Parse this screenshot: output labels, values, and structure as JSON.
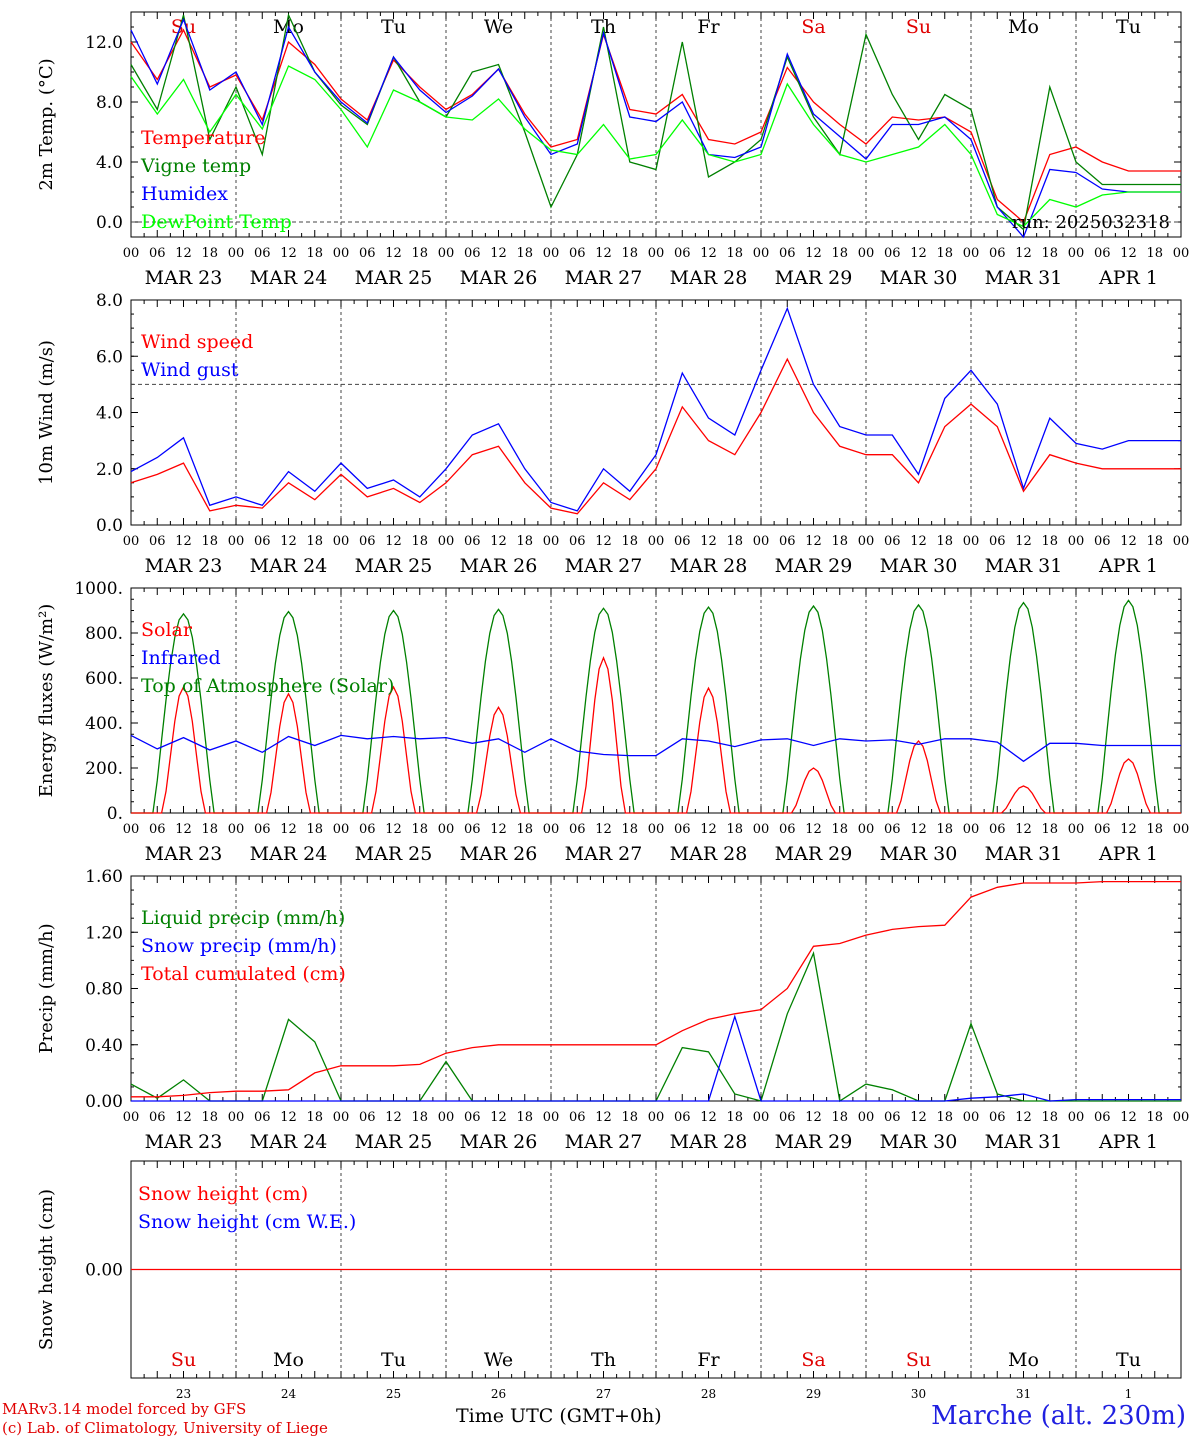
{
  "footer": {
    "model_credit": "MARv3.14 model forced by GFS",
    "lab_credit": "(c) Lab. of Climatology, University of Liege",
    "time_label": "Time UTC (GMT+0h)",
    "station": "Marche (alt. 230m)"
  },
  "x_axis": {
    "hour_ticks": [
      "00",
      "06",
      "12",
      "18"
    ],
    "date_labels": [
      "MAR 23",
      "MAR 24",
      "MAR 25",
      "MAR 26",
      "MAR 27",
      "MAR 28",
      "MAR 29",
      "MAR 30",
      "MAR 31",
      "APR  1"
    ],
    "weekdays": [
      "Su",
      "Mo",
      "Tu",
      "We",
      "Th",
      "Fr",
      "Sa",
      "Su",
      "Mo",
      "Tu"
    ],
    "weekday_colors": [
      "#e00000",
      "#000000",
      "#000000",
      "#000000",
      "#000000",
      "#000000",
      "#e00000",
      "#e00000",
      "#000000",
      "#000000"
    ],
    "day_numbers": [
      "23",
      "24",
      "25",
      "26",
      "27",
      "28",
      "29",
      "30",
      "31",
      "1"
    ],
    "range_hours": [
      0,
      240
    ]
  },
  "chart_data": [
    {
      "type": "line",
      "ylabel": "2m Temp. (°C)",
      "ylim": [
        -1.0,
        14.0
      ],
      "yticks": [
        "0.0",
        "4.0",
        "8.0",
        "12.0"
      ],
      "ytick_values": [
        0,
        4,
        8,
        12
      ],
      "reference_line": 0,
      "annotation": "run: 2025032318",
      "x_hours": [
        0,
        6,
        12,
        18,
        24,
        30,
        36,
        42,
        48,
        54,
        60,
        66,
        72,
        78,
        84,
        90,
        96,
        102,
        108,
        114,
        120,
        126,
        132,
        138,
        144,
        150,
        156,
        162,
        168,
        174,
        180,
        186,
        192,
        198,
        204,
        210,
        216,
        222,
        228,
        234,
        240
      ],
      "series": [
        {
          "name": "Temperature",
          "color": "#ff0000",
          "values": [
            12.0,
            9.5,
            12.8,
            9.0,
            9.8,
            6.8,
            12.0,
            10.5,
            8.2,
            6.8,
            10.8,
            9.0,
            7.5,
            8.5,
            10.2,
            7.2,
            5.0,
            5.5,
            12.5,
            7.5,
            7.2,
            8.5,
            5.5,
            5.2,
            6.0,
            10.3,
            8.0,
            6.5,
            5.2,
            7.0,
            6.8,
            7.0,
            6.0,
            1.5,
            0.0,
            4.5,
            5.0,
            4.0,
            3.4,
            3.4,
            3.4
          ]
        },
        {
          "name": "Vigne temp",
          "color": "#008000",
          "values": [
            10.5,
            7.5,
            13.8,
            5.5,
            9.0,
            4.5,
            13.8,
            10.0,
            7.8,
            6.5,
            11.0,
            8.0,
            7.0,
            10.0,
            10.5,
            6.0,
            1.0,
            4.5,
            13.0,
            4.0,
            3.5,
            12.0,
            3.0,
            4.0,
            5.5,
            11.0,
            7.0,
            4.5,
            12.5,
            8.5,
            5.5,
            8.5,
            7.5,
            1.0,
            -0.5,
            9.0,
            4.0,
            2.5,
            2.5,
            2.5,
            2.5
          ]
        },
        {
          "name": "Humidex",
          "color": "#0000ff",
          "values": [
            12.8,
            9.2,
            13.5,
            8.8,
            10.0,
            6.5,
            13.0,
            10.0,
            8.0,
            6.6,
            11.0,
            8.8,
            7.3,
            8.4,
            10.2,
            7.0,
            4.5,
            5.2,
            12.6,
            7.0,
            6.7,
            8.0,
            4.5,
            4.3,
            5.0,
            11.2,
            7.2,
            5.7,
            4.2,
            6.5,
            6.5,
            7.0,
            5.5,
            1.0,
            -1.8,
            3.5,
            3.3,
            2.2,
            2.0,
            2.0,
            2.0
          ]
        },
        {
          "name": "DewPoint Temp",
          "color": "#00ff00",
          "values": [
            9.7,
            7.2,
            9.5,
            6.0,
            8.5,
            6.2,
            10.4,
            9.5,
            7.5,
            5.0,
            8.8,
            8.0,
            7.0,
            6.8,
            8.2,
            6.2,
            4.8,
            4.5,
            6.5,
            4.2,
            4.5,
            6.8,
            4.5,
            4.0,
            4.5,
            9.2,
            6.5,
            4.5,
            4.0,
            4.5,
            5.0,
            6.5,
            4.5,
            0.5,
            -0.3,
            1.5,
            1.0,
            1.8,
            2.0,
            2.0,
            2.0
          ]
        }
      ]
    },
    {
      "type": "line",
      "ylabel": "10m Wind (m/s)",
      "ylim": [
        0.0,
        8.0
      ],
      "yticks": [
        "0.0",
        "2.0",
        "4.0",
        "6.0",
        "8.0"
      ],
      "ytick_values": [
        0,
        2,
        4,
        6,
        8
      ],
      "reference_line": 5,
      "x_hours": [
        0,
        6,
        12,
        18,
        24,
        30,
        36,
        42,
        48,
        54,
        60,
        66,
        72,
        78,
        84,
        90,
        96,
        102,
        108,
        114,
        120,
        126,
        132,
        138,
        144,
        150,
        156,
        162,
        168,
        174,
        180,
        186,
        192,
        198,
        204,
        210,
        216,
        222,
        228,
        234,
        240
      ],
      "series": [
        {
          "name": "Wind speed",
          "color": "#ff0000",
          "values": [
            1.5,
            1.8,
            2.2,
            0.5,
            0.7,
            0.6,
            1.5,
            0.9,
            1.8,
            1.0,
            1.3,
            0.8,
            1.5,
            2.5,
            2.8,
            1.5,
            0.6,
            0.4,
            1.5,
            0.9,
            2.0,
            4.2,
            3.0,
            2.5,
            4.0,
            5.9,
            4.0,
            2.8,
            2.5,
            2.5,
            1.5,
            3.5,
            4.3,
            3.5,
            1.2,
            2.5,
            2.2,
            2.0,
            2.0,
            2.0,
            2.0
          ]
        },
        {
          "name": "Wind gust",
          "color": "#0000ff",
          "values": [
            1.9,
            2.4,
            3.1,
            0.7,
            1.0,
            0.7,
            1.9,
            1.2,
            2.2,
            1.3,
            1.6,
            1.0,
            2.0,
            3.2,
            3.6,
            2.0,
            0.8,
            0.5,
            2.0,
            1.2,
            2.5,
            5.4,
            3.8,
            3.2,
            5.5,
            7.7,
            5.0,
            3.5,
            3.2,
            3.2,
            1.8,
            4.5,
            5.5,
            4.3,
            1.3,
            3.8,
            2.9,
            2.7,
            3.0,
            3.0,
            3.0
          ]
        }
      ]
    },
    {
      "type": "line",
      "ylabel": "Energy fluxes (W/m²)",
      "ylim": [
        0,
        1000
      ],
      "yticks": [
        "0.",
        "200.",
        "400.",
        "600.",
        "800.",
        "1000."
      ],
      "ytick_values": [
        0,
        200,
        400,
        600,
        800,
        1000
      ],
      "daily_peaks": {
        "Top of Atmosphere (Solar)": [
          885,
          895,
          900,
          905,
          910,
          915,
          920,
          925,
          935,
          945
        ],
        "Solar": [
          560,
          530,
          560,
          470,
          690,
          555,
          200,
          320,
          120,
          240
        ]
      },
      "x_hours": [
        0,
        6,
        12,
        18,
        24,
        30,
        36,
        42,
        48,
        54,
        60,
        66,
        72,
        78,
        84,
        90,
        96,
        102,
        108,
        114,
        120,
        126,
        132,
        138,
        144,
        150,
        156,
        162,
        168,
        174,
        180,
        186,
        192,
        198,
        204,
        210,
        216,
        222,
        228,
        234,
        240
      ],
      "series": [
        {
          "name": "Solar",
          "color": "#ff0000",
          "values": []
        },
        {
          "name": "Infrared",
          "color": "#0000ff",
          "values": [
            345,
            285,
            335,
            280,
            320,
            270,
            340,
            300,
            345,
            330,
            340,
            330,
            335,
            310,
            330,
            270,
            330,
            275,
            260,
            255,
            255,
            330,
            320,
            295,
            325,
            330,
            300,
            330,
            320,
            325,
            305,
            330,
            330,
            315,
            230,
            310,
            310,
            300,
            300,
            300,
            300
          ]
        },
        {
          "name": "Top of Atmosphere (Solar)",
          "color": "#008000",
          "values": []
        }
      ]
    },
    {
      "type": "line",
      "ylabel": "Precip (mm/h)",
      "ylim": [
        0.0,
        1.6
      ],
      "yticks": [
        "0.00",
        "0.40",
        "0.80",
        "1.20",
        "1.60"
      ],
      "ytick_values": [
        0,
        0.4,
        0.8,
        1.2,
        1.6
      ],
      "x_hours": [
        0,
        6,
        12,
        18,
        24,
        30,
        36,
        42,
        48,
        54,
        60,
        66,
        72,
        78,
        84,
        90,
        96,
        102,
        108,
        114,
        120,
        126,
        132,
        138,
        144,
        150,
        156,
        162,
        168,
        174,
        180,
        186,
        192,
        198,
        204,
        210,
        216,
        222,
        228,
        234,
        240
      ],
      "series": [
        {
          "name": "Liquid precip (mm/h)",
          "color": "#008000",
          "values": [
            0.12,
            0.02,
            0.15,
            0.0,
            0.0,
            0.0,
            0.58,
            0.42,
            0.0,
            0.0,
            0.0,
            0.0,
            0.28,
            0.0,
            0.0,
            0.0,
            0.0,
            0.0,
            0.0,
            0.0,
            0.0,
            0.38,
            0.35,
            0.05,
            0.0,
            0.62,
            1.05,
            0.0,
            0.12,
            0.08,
            0.0,
            0.0,
            0.55,
            0.05,
            0.0,
            0.0,
            0.0,
            0.0,
            0.0,
            0.0,
            0.0
          ]
        },
        {
          "name": "Snow precip (mm/h)",
          "color": "#0000ff",
          "values": [
            0.0,
            0.0,
            0.0,
            0.0,
            0.0,
            0.0,
            0.0,
            0.0,
            0.0,
            0.0,
            0.0,
            0.0,
            0.0,
            0.0,
            0.0,
            0.0,
            0.0,
            0.0,
            0.0,
            0.0,
            0.0,
            0.0,
            0.0,
            0.6,
            0.0,
            0.0,
            0.0,
            0.0,
            0.0,
            0.0,
            0.0,
            0.0,
            0.02,
            0.03,
            0.05,
            0.0,
            0.01,
            0.01,
            0.01,
            0.01,
            0.01
          ]
        },
        {
          "name": "Total cumulated (cm)",
          "color": "#ff0000",
          "values": [
            0.03,
            0.03,
            0.04,
            0.06,
            0.07,
            0.07,
            0.08,
            0.2,
            0.25,
            0.25,
            0.25,
            0.26,
            0.34,
            0.38,
            0.4,
            0.4,
            0.4,
            0.4,
            0.4,
            0.4,
            0.4,
            0.5,
            0.58,
            0.62,
            0.65,
            0.8,
            1.1,
            1.12,
            1.18,
            1.22,
            1.24,
            1.25,
            1.45,
            1.52,
            1.55,
            1.55,
            1.55,
            1.56,
            1.56,
            1.56,
            1.56
          ]
        }
      ]
    },
    {
      "type": "line",
      "ylabel": "Snow height (cm)",
      "yticks": [
        "0.00"
      ],
      "ytick_values": [
        0
      ],
      "ylim": [
        -1,
        1
      ],
      "series": [
        {
          "name": "Snow height (cm)",
          "color": "#ff0000",
          "values": [
            0,
            0
          ]
        },
        {
          "name": "Snow height (cm W.E.)",
          "color": "#0000ff",
          "values": []
        }
      ]
    }
  ]
}
